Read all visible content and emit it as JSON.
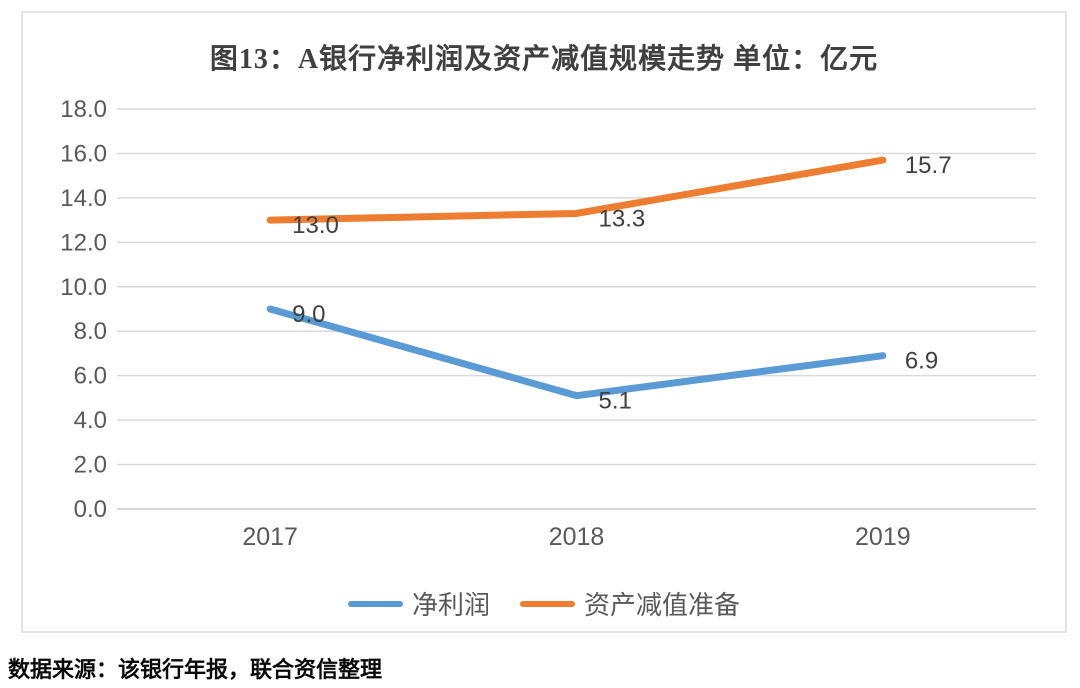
{
  "title": "图13：A银行净利润及资产减值规模走势 单位：亿元",
  "source_note": "数据来源：该银行年报，联合资信整理",
  "colors": {
    "series_blue": "#5B9BD5",
    "series_orange": "#ED7D31",
    "gridline": "#D9D9D9",
    "axis_line": "#C9C9C9",
    "tick_text": "#595959",
    "data_label_text": "#404040",
    "box_border": "#E4E4E4"
  },
  "chart_data": {
    "type": "line",
    "title": "图13：A银行净利润及资产减值规模走势 单位：亿元",
    "categories": [
      "2017",
      "2018",
      "2019"
    ],
    "series": [
      {
        "id": "net-profit",
        "name": "净利润",
        "color": "#5B9BD5",
        "values": [
          9.0,
          5.1,
          6.9
        ],
        "labels": [
          "9.0",
          "5.1",
          "6.9"
        ]
      },
      {
        "id": "asset-impairment-provision",
        "name": "资产减值准备",
        "color": "#ED7D31",
        "values": [
          13.0,
          13.3,
          15.7
        ],
        "labels": [
          "13.0",
          "13.3",
          "15.7"
        ]
      }
    ],
    "ylim": [
      0,
      18
    ],
    "ytick_step": 2,
    "ytick_labels": [
      "0.0",
      "2.0",
      "4.0",
      "6.0",
      "8.0",
      "10.0",
      "12.0",
      "14.0",
      "16.0",
      "18.0"
    ],
    "xlabel": "",
    "ylabel": "",
    "grid": "horizontal",
    "legend_position": "bottom",
    "data_labels_position": "right"
  }
}
